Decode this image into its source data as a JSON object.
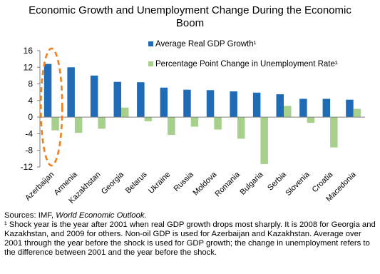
{
  "chart_data": {
    "type": "bar",
    "title_line1": "Economic Growth and Unemployment Change During the Economic",
    "title_line2": "Boom",
    "categories": [
      "Azerbaijan",
      "Armenia",
      "Kazakhstan",
      "Georgia",
      "Belarus",
      "Ukraine",
      "Russia",
      "Moldova",
      "Romania",
      "Bulgaria",
      "Serbia",
      "Slovenia",
      "Croatia",
      "Macedonia"
    ],
    "series": [
      {
        "name": "Average Real GDP Growth¹",
        "color": "#1f6bb5",
        "values": [
          12.8,
          12.0,
          10.0,
          8.5,
          8.4,
          7.1,
          6.6,
          6.5,
          6.2,
          5.9,
          5.5,
          4.4,
          4.4,
          4.2
        ]
      },
      {
        "name": "Percentage Point Change in Unemployment Rate¹",
        "color": "#a8d08d",
        "values": [
          -3.2,
          -3.8,
          -2.8,
          2.3,
          -1.0,
          -4.3,
          -2.3,
          -3.0,
          -5.2,
          -11.3,
          2.7,
          -1.4,
          -7.3,
          2.0
        ]
      }
    ],
    "yticks": [
      16,
      12,
      8,
      4,
      0,
      -4,
      -8,
      -12
    ],
    "ylim": [
      -12,
      16
    ],
    "grid": false,
    "legend_position": "top-right",
    "highlight": {
      "category": "Azerbaijan",
      "style": "dashed-ellipse",
      "color": "#f07f1b"
    }
  },
  "notes": {
    "sources_prefix": "Sources: IMF, ",
    "sources_title": "World Economic Outlook.",
    "footnote": "¹ Shock year is the year after 2001 when real GDP growth drops most sharply. It is 2008 for Georgia and Kazakhstan, and 2009 for others. Non-oil GDP is used for Azerbaijan and Kazakhstan.  Average over 2001 through the year before the shock is used for GDP growth; the change in unemployment refers to the difference between 2001 and the year before the shock."
  }
}
